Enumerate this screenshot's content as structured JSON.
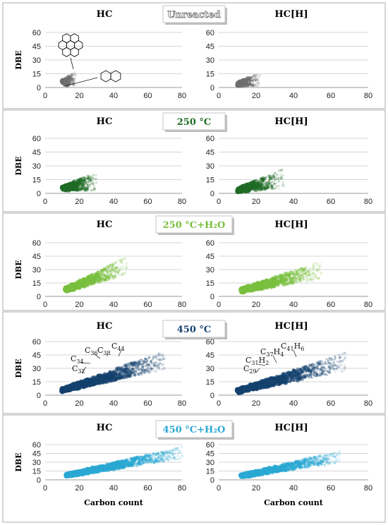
{
  "rows": [
    {
      "condition": "Unreacted",
      "color": "#6e6e6e",
      "label_style": "outline"
    },
    {
      "condition": "250 °C",
      "color": "#1f6b25",
      "label_style": "filled"
    },
    {
      "condition": "250 °C+H₂O",
      "color": "#79bf3e",
      "label_style": "filled"
    },
    {
      "condition": "450 °C",
      "color": "#14416e",
      "label_style": "filled"
    },
    {
      "condition": "450 °C+H₂O",
      "color": "#2aa8d3",
      "label_style": "filled"
    }
  ],
  "columns": [
    "HC",
    "HC[H]"
  ],
  "axes": {
    "xlabel": "Carbon count",
    "ylabel": "DBE",
    "x_ticks": [
      "0",
      "20",
      "40",
      "60",
      "80"
    ],
    "y_ticks": [
      "0",
      "15",
      "30",
      "45",
      "60"
    ]
  },
  "annotations": {
    "hc_450": [
      "C36",
      "C38",
      "C44",
      "C34",
      "C32"
    ],
    "hch_450": [
      "C37H4",
      "C41H6",
      "C31H2",
      "C29"
    ]
  },
  "chart_data": {
    "type": "scatter",
    "xlim": [
      0,
      80
    ],
    "ylim": [
      0,
      60
    ],
    "grid": true,
    "panels": [
      {
        "row": "Unreacted",
        "column": "HC",
        "x_range": [
          10,
          18
        ],
        "dbe_range": [
          7,
          18
        ],
        "labeled_structures": [
          "coronene",
          "naphthalene"
        ]
      },
      {
        "row": "Unreacted",
        "column": "HC[H]",
        "x_range": [
          10,
          22
        ],
        "dbe_range": [
          5,
          16
        ]
      },
      {
        "row": "250 °C",
        "column": "HC",
        "x_range": [
          10,
          30
        ],
        "dbe_range": [
          7,
          24
        ]
      },
      {
        "row": "250 °C",
        "column": "HC[H]",
        "x_range": [
          10,
          35
        ],
        "dbe_range": [
          5,
          27
        ]
      },
      {
        "row": "250 °C+H₂O",
        "column": "HC",
        "x_range": [
          12,
          48
        ],
        "dbe_range": [
          9,
          45
        ]
      },
      {
        "row": "250 °C+H₂O",
        "column": "HC[H]",
        "x_range": [
          12,
          55
        ],
        "dbe_range": [
          8,
          40
        ]
      },
      {
        "row": "450 °C",
        "column": "HC",
        "x_range": [
          10,
          70
        ],
        "dbe_range": [
          7,
          50
        ]
      },
      {
        "row": "450 °C",
        "column": "HC[H]",
        "x_range": [
          10,
          68
        ],
        "dbe_range": [
          6,
          48
        ]
      },
      {
        "row": "450 °C+H₂O",
        "column": "HC",
        "x_range": [
          12,
          80
        ],
        "dbe_range": [
          9,
          57
        ]
      },
      {
        "row": "450 °C+H₂O",
        "column": "HC[H]",
        "x_range": [
          12,
          65
        ],
        "dbe_range": [
          8,
          50
        ]
      }
    ]
  }
}
